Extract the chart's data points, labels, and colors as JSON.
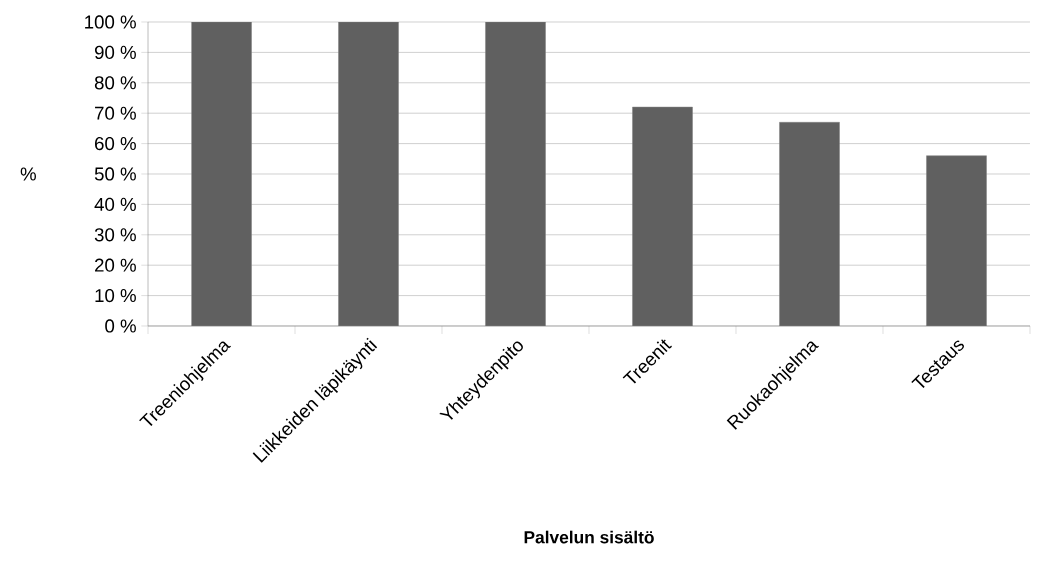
{
  "chart_data": {
    "type": "bar",
    "xlabel": "Palvelun sisältö",
    "ylabel": "%",
    "categories": [
      "Treeniohjelma",
      "Liikkeiden läpikäynti",
      "Yhteydenpito",
      "Treenit",
      "Ruokaohjelma",
      "Testaus"
    ],
    "values": [
      100,
      100,
      100,
      72,
      67,
      56
    ],
    "color": "#606060",
    "ylim": [
      0,
      100
    ],
    "yticks": [
      {
        "value": 0,
        "label": "0 %"
      },
      {
        "value": 10,
        "label": "10 %"
      },
      {
        "value": 20,
        "label": "20 %"
      },
      {
        "value": 30,
        "label": "30 %"
      },
      {
        "value": 40,
        "label": "40 %"
      },
      {
        "value": 50,
        "label": "50 %"
      },
      {
        "value": 60,
        "label": "60 %"
      },
      {
        "value": 70,
        "label": "70 %"
      },
      {
        "value": 80,
        "label": "80 %"
      },
      {
        "value": 90,
        "label": "90 %"
      },
      {
        "value": 100,
        "label": "100 %"
      }
    ],
    "grid": "y"
  }
}
